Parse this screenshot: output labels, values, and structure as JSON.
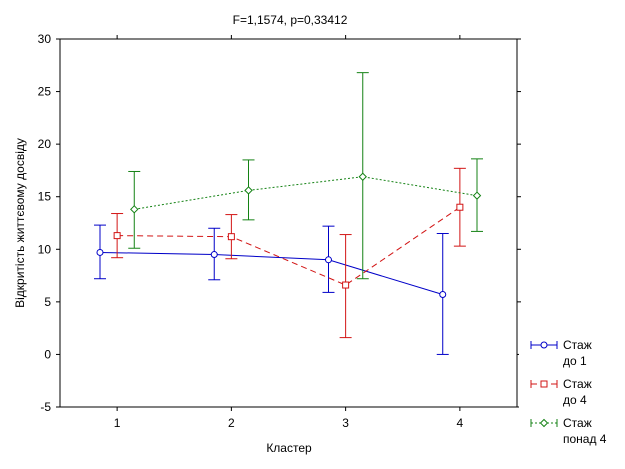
{
  "chart_data": {
    "type": "line",
    "title": "F=1,1574, p=0,33412",
    "xlabel": "Кластер",
    "ylabel": "Відкритість життєвому досвіду",
    "ylim": [
      -5,
      30
    ],
    "yticks": [
      -5,
      0,
      5,
      10,
      15,
      20,
      25,
      30
    ],
    "xlim": [
      0.5,
      4.5
    ],
    "categories": [
      "1",
      "2",
      "3",
      "4"
    ],
    "grid": false,
    "legend_position": "bottom-right",
    "series": [
      {
        "name": "Стаж до 1",
        "name_lines": [
          "Стаж",
          "до 1"
        ],
        "color": "#0000c8",
        "line_style": "solid",
        "marker": "circle",
        "x": [
          0.85,
          1.85,
          2.85,
          3.85
        ],
        "values": [
          9.7,
          9.5,
          9.0,
          5.7
        ],
        "lower": [
          7.2,
          7.1,
          5.9,
          0.0
        ],
        "upper": [
          12.3,
          12.0,
          12.2,
          11.5
        ]
      },
      {
        "name": "Стаж до 4",
        "name_lines": [
          "Стаж",
          "до 4"
        ],
        "color": "#d21414",
        "line_style": "dashed",
        "marker": "square",
        "x": [
          1.0,
          2.0,
          3.0,
          4.0
        ],
        "values": [
          11.3,
          11.2,
          6.6,
          14.0
        ],
        "lower": [
          9.2,
          9.1,
          1.6,
          10.3
        ],
        "upper": [
          13.4,
          13.3,
          11.4,
          17.7
        ]
      },
      {
        "name": "Стаж понад 4",
        "name_lines": [
          "Стаж",
          "понад 4"
        ],
        "color": "#148214",
        "line_style": "dotted",
        "marker": "diamond",
        "x": [
          1.15,
          2.15,
          3.15,
          4.15
        ],
        "values": [
          13.8,
          15.6,
          16.9,
          15.1
        ],
        "lower": [
          10.1,
          12.8,
          7.2,
          11.7
        ],
        "upper": [
          17.4,
          18.5,
          26.8,
          18.6
        ]
      }
    ]
  }
}
